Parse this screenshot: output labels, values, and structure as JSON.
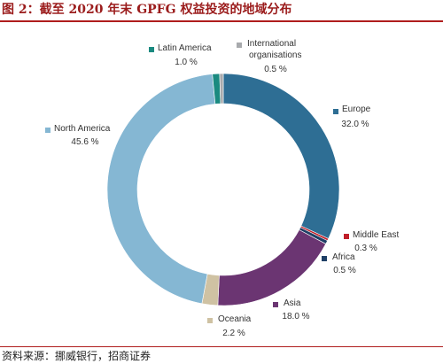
{
  "header": {
    "title": "图 2：截至 2020 年末 GPFG 权益投资的地域分布"
  },
  "footer": {
    "source": "资料来源：挪威银行，招商证券"
  },
  "chart_data": {
    "type": "pie",
    "donut": true,
    "title": "",
    "unit": "%",
    "slices": [
      {
        "label": "Europe",
        "value": 32.0,
        "value_label": "32.0 %",
        "color": "#2e6e94"
      },
      {
        "label": "Middle East",
        "value": 0.3,
        "value_label": "0.3 %",
        "color": "#c0202a"
      },
      {
        "label": "Africa",
        "value": 0.5,
        "value_label": "0.5 %",
        "color": "#1f3f66"
      },
      {
        "label": "Asia",
        "value": 18.0,
        "value_label": "18.0 %",
        "color": "#6b3572"
      },
      {
        "label": "Oceania",
        "value": 2.2,
        "value_label": "2.2 %",
        "color": "#cfc2a3"
      },
      {
        "label": "North America",
        "value": 45.6,
        "value_label": "45.6 %",
        "color": "#85b7d3"
      },
      {
        "label": "Latin America",
        "value": 1.0,
        "value_label": "1.0 %",
        "color": "#1a8a80"
      },
      {
        "label": "International organisations",
        "label_lines": [
          "International",
          "organisations"
        ],
        "value": 0.5,
        "value_label": "0.5 %",
        "color": "#a8aaad"
      }
    ]
  }
}
